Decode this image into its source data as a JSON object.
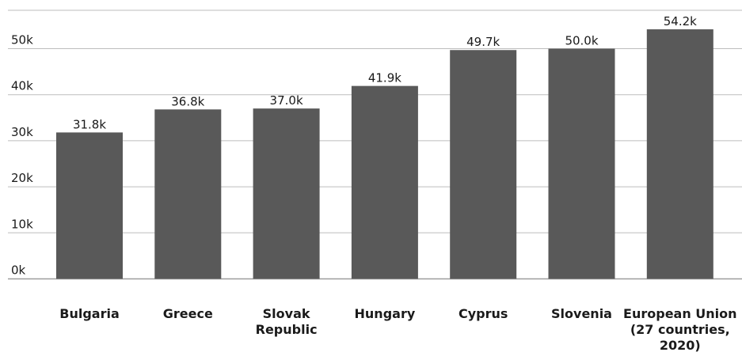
{
  "chart_data": {
    "type": "bar",
    "categories": [
      "Bulgaria",
      "Greece",
      "Slovak Republic",
      "Hungary",
      "Cyprus",
      "Slovenia",
      "European Union (27 countries, 2020)"
    ],
    "category_lines": [
      [
        "Bulgaria"
      ],
      [
        "Greece"
      ],
      [
        "Slovak",
        "Republic"
      ],
      [
        "Hungary"
      ],
      [
        "Cyprus"
      ],
      [
        "Slovenia"
      ],
      [
        "European Union",
        "(27 countries,",
        "2020)"
      ]
    ],
    "values": [
      31.8,
      36.8,
      37.0,
      41.9,
      49.7,
      50.0,
      54.2
    ],
    "data_labels": [
      "31.8k",
      "36.8k",
      "37.0k",
      "41.9k",
      "49.7k",
      "50.0k",
      "54.2k"
    ],
    "yticks": [
      0,
      10,
      20,
      30,
      40,
      50
    ],
    "ytick_labels": [
      "0k",
      "10k",
      "20k",
      "30k",
      "40k",
      "50k"
    ],
    "ylim": [
      0,
      58
    ],
    "grid": true,
    "bar_color": "#595959"
  }
}
